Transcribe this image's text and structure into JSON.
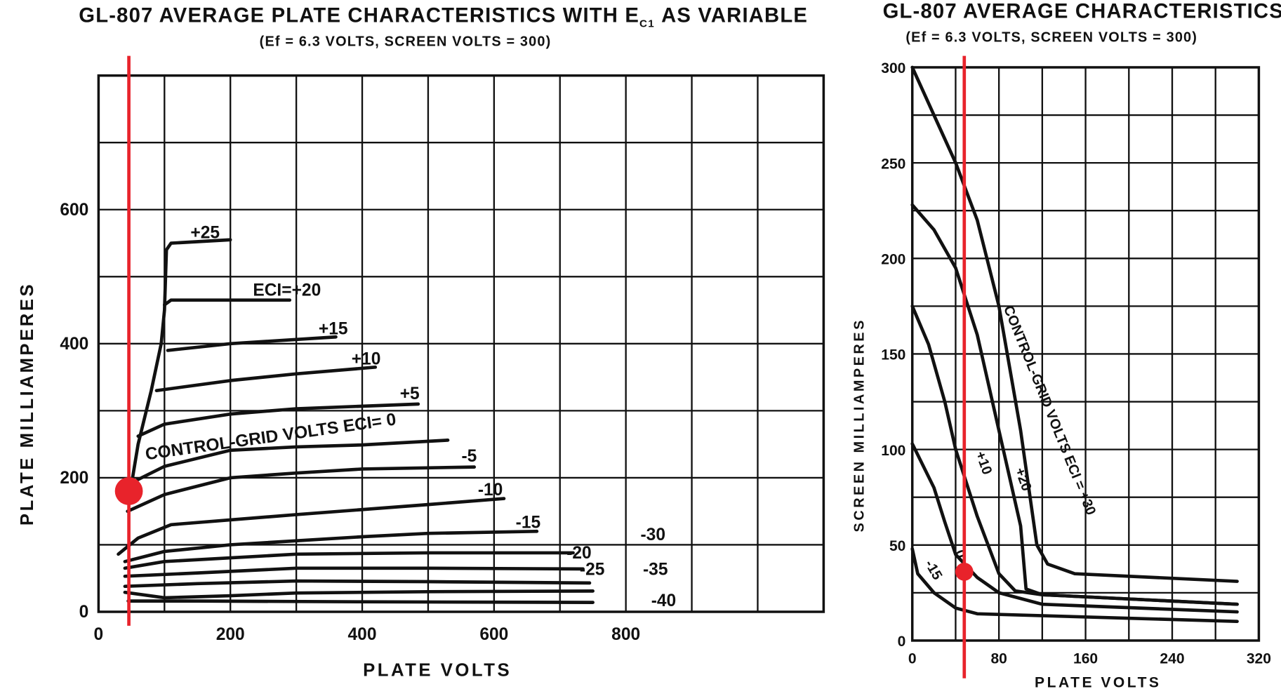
{
  "colors": {
    "ink": "#111111",
    "marker": "#e8232b"
  },
  "chart_data": [
    {
      "type": "line",
      "title": "GL-807 AVERAGE PLATE CHARACTERISTICS WITH E",
      "title_sub": "C1",
      "title_end": "AS VARIABLE",
      "subtitle": "(Ef = 6.3  VOLTS, SCREEN VOLTS = 300)",
      "xlabel": "PLATE VOLTS",
      "ylabel": "PLATE MILLIAMPERES",
      "xlim": [
        0,
        1100
      ],
      "ylim": [
        0,
        800
      ],
      "xgrid_step": 100,
      "ygrid_step": 100,
      "xticks": [
        0,
        200,
        400,
        600,
        800
      ],
      "yticks": [
        0,
        200,
        400,
        600
      ],
      "xtick_labels": [
        "0",
        "200",
        "400",
        "600",
        "800"
      ],
      "ytick_labels": [
        "0",
        "200",
        "400",
        "600"
      ],
      "grid": true,
      "series": [
        {
          "name": "+25",
          "label": "+25",
          "points": [
            [
              50,
              190
            ],
            [
              60,
              250
            ],
            [
              80,
              330
            ],
            [
              95,
              400
            ],
            [
              100,
              450
            ],
            [
              103,
              540
            ],
            [
              110,
              550
            ],
            [
              200,
              555
            ]
          ]
        },
        {
          "name": "+20",
          "label": "ECI=+20",
          "points": [
            [
              100,
              458
            ],
            [
              110,
              465
            ],
            [
              290,
              465
            ]
          ]
        },
        {
          "name": "+15",
          "label": "+15",
          "points": [
            [
              105,
              390
            ],
            [
              200,
              400
            ],
            [
              360,
              410
            ]
          ]
        },
        {
          "name": "+10",
          "label": "+10",
          "points": [
            [
              88,
              330
            ],
            [
              200,
              345
            ],
            [
              300,
              355
            ],
            [
              420,
              365
            ]
          ]
        },
        {
          "name": "+5",
          "label": "+5",
          "points": [
            [
              60,
              262
            ],
            [
              100,
              280
            ],
            [
              200,
              295
            ],
            [
              300,
              303
            ],
            [
              485,
              310
            ]
          ]
        },
        {
          "name": "0",
          "label": "CONTROL-GRID VOLTS  ECI= 0",
          "points": [
            [
              45,
              190
            ],
            [
              100,
              217
            ],
            [
              200,
              241
            ],
            [
              300,
              246
            ],
            [
              400,
              249
            ],
            [
              530,
              256
            ]
          ]
        },
        {
          "name": "-5",
          "label": "-5",
          "points": [
            [
              44,
              150
            ],
            [
              100,
              175
            ],
            [
              200,
              200
            ],
            [
              300,
              207
            ],
            [
              400,
              213
            ],
            [
              570,
              216
            ]
          ]
        },
        {
          "name": "-10",
          "label": "-10",
          "points": [
            [
              30,
              86
            ],
            [
              60,
              110
            ],
            [
              110,
              130
            ],
            [
              300,
              145
            ],
            [
              500,
              160
            ],
            [
              615,
              169
            ]
          ]
        },
        {
          "name": "-15",
          "label": "-15",
          "points": [
            [
              40,
              75
            ],
            [
              100,
              90
            ],
            [
              200,
              100
            ],
            [
              400,
              112
            ],
            [
              500,
              117
            ],
            [
              665,
              120
            ]
          ]
        },
        {
          "name": "-20",
          "label": "-20",
          "points": [
            [
              40,
              65
            ],
            [
              100,
              75
            ],
            [
              300,
              86
            ],
            [
              500,
              88
            ],
            [
              720,
              88
            ]
          ]
        },
        {
          "name": "-25",
          "label": "-25",
          "points": [
            [
              40,
              53
            ],
            [
              150,
              58
            ],
            [
              300,
              65
            ],
            [
              500,
              65
            ],
            [
              735,
              64
            ]
          ]
        },
        {
          "name": "-30",
          "label": "-30",
          "points": [
            [
              40,
              38
            ],
            [
              150,
              42
            ],
            [
              300,
              46
            ],
            [
              500,
              45
            ],
            [
              745,
              43
            ]
          ]
        },
        {
          "name": "-35",
          "label": "-35",
          "points": [
            [
              40,
              29
            ],
            [
              100,
              21
            ],
            [
              200,
              24
            ],
            [
              300,
              28
            ],
            [
              500,
              30
            ],
            [
              750,
              31
            ]
          ]
        },
        {
          "name": "-40",
          "label": "-40",
          "points": [
            [
              45,
              16
            ],
            [
              150,
              16
            ],
            [
              400,
              15
            ],
            [
              750,
              14
            ]
          ]
        }
      ],
      "marker": {
        "x": 46,
        "y": 180
      }
    },
    {
      "type": "line",
      "title": "GL-807 AVERAGE CHARACTERISTICS",
      "subtitle": "(Ef = 6.3  VOLTS, SCREEN VOLTS = 300)",
      "xlabel": "PLATE VOLTS",
      "ylabel": "SCREEN MILLIAMPERES",
      "xlim": [
        0,
        320
      ],
      "ylim": [
        0,
        300
      ],
      "xgrid_step": 40,
      "ygrid_step": 25,
      "xticks": [
        0,
        80,
        160,
        240,
        320
      ],
      "yticks": [
        0,
        50,
        100,
        150,
        200,
        250,
        300
      ],
      "xtick_labels": [
        "0",
        "80",
        "160",
        "240",
        "320"
      ],
      "ytick_labels": [
        "0",
        "50",
        "100",
        "150",
        "200",
        "250",
        "300"
      ],
      "grid": true,
      "series": [
        {
          "name": "+30",
          "label": "CONTROL-GRID VOLTS  ECI = +30",
          "points": [
            [
              0,
              300
            ],
            [
              20,
              275
            ],
            [
              40,
              250
            ],
            [
              60,
              220
            ],
            [
              80,
              175
            ],
            [
              100,
              110
            ],
            [
              115,
              50
            ],
            [
              125,
              40
            ],
            [
              150,
              35
            ],
            [
              300,
              31
            ]
          ]
        },
        {
          "name": "+20",
          "label": "+20",
          "points": [
            [
              0,
              228
            ],
            [
              20,
              215
            ],
            [
              40,
              195
            ],
            [
              60,
              160
            ],
            [
              80,
              110
            ],
            [
              100,
              60
            ],
            [
              105,
              27
            ],
            [
              120,
              24
            ],
            [
              300,
              19
            ]
          ]
        },
        {
          "name": "+10",
          "label": "+10",
          "points": [
            [
              0,
              175
            ],
            [
              15,
              155
            ],
            [
              30,
              125
            ],
            [
              40,
              100
            ],
            [
              60,
              65
            ],
            [
              80,
              35
            ],
            [
              95,
              26
            ],
            [
              120,
              24
            ],
            [
              300,
              19
            ]
          ]
        },
        {
          "name": "0",
          "label": "0",
          "points": [
            [
              0,
              103
            ],
            [
              20,
              80
            ],
            [
              30,
              62
            ],
            [
              40,
              45
            ],
            [
              60,
              33
            ],
            [
              80,
              25
            ],
            [
              120,
              19
            ],
            [
              300,
              15
            ]
          ]
        },
        {
          "name": "-15",
          "label": "-15",
          "points": [
            [
              0,
              48
            ],
            [
              5,
              35
            ],
            [
              20,
              25
            ],
            [
              40,
              17
            ],
            [
              60,
              14
            ],
            [
              300,
              10
            ]
          ]
        }
      ],
      "marker": {
        "x": 48,
        "y": 36
      }
    }
  ]
}
